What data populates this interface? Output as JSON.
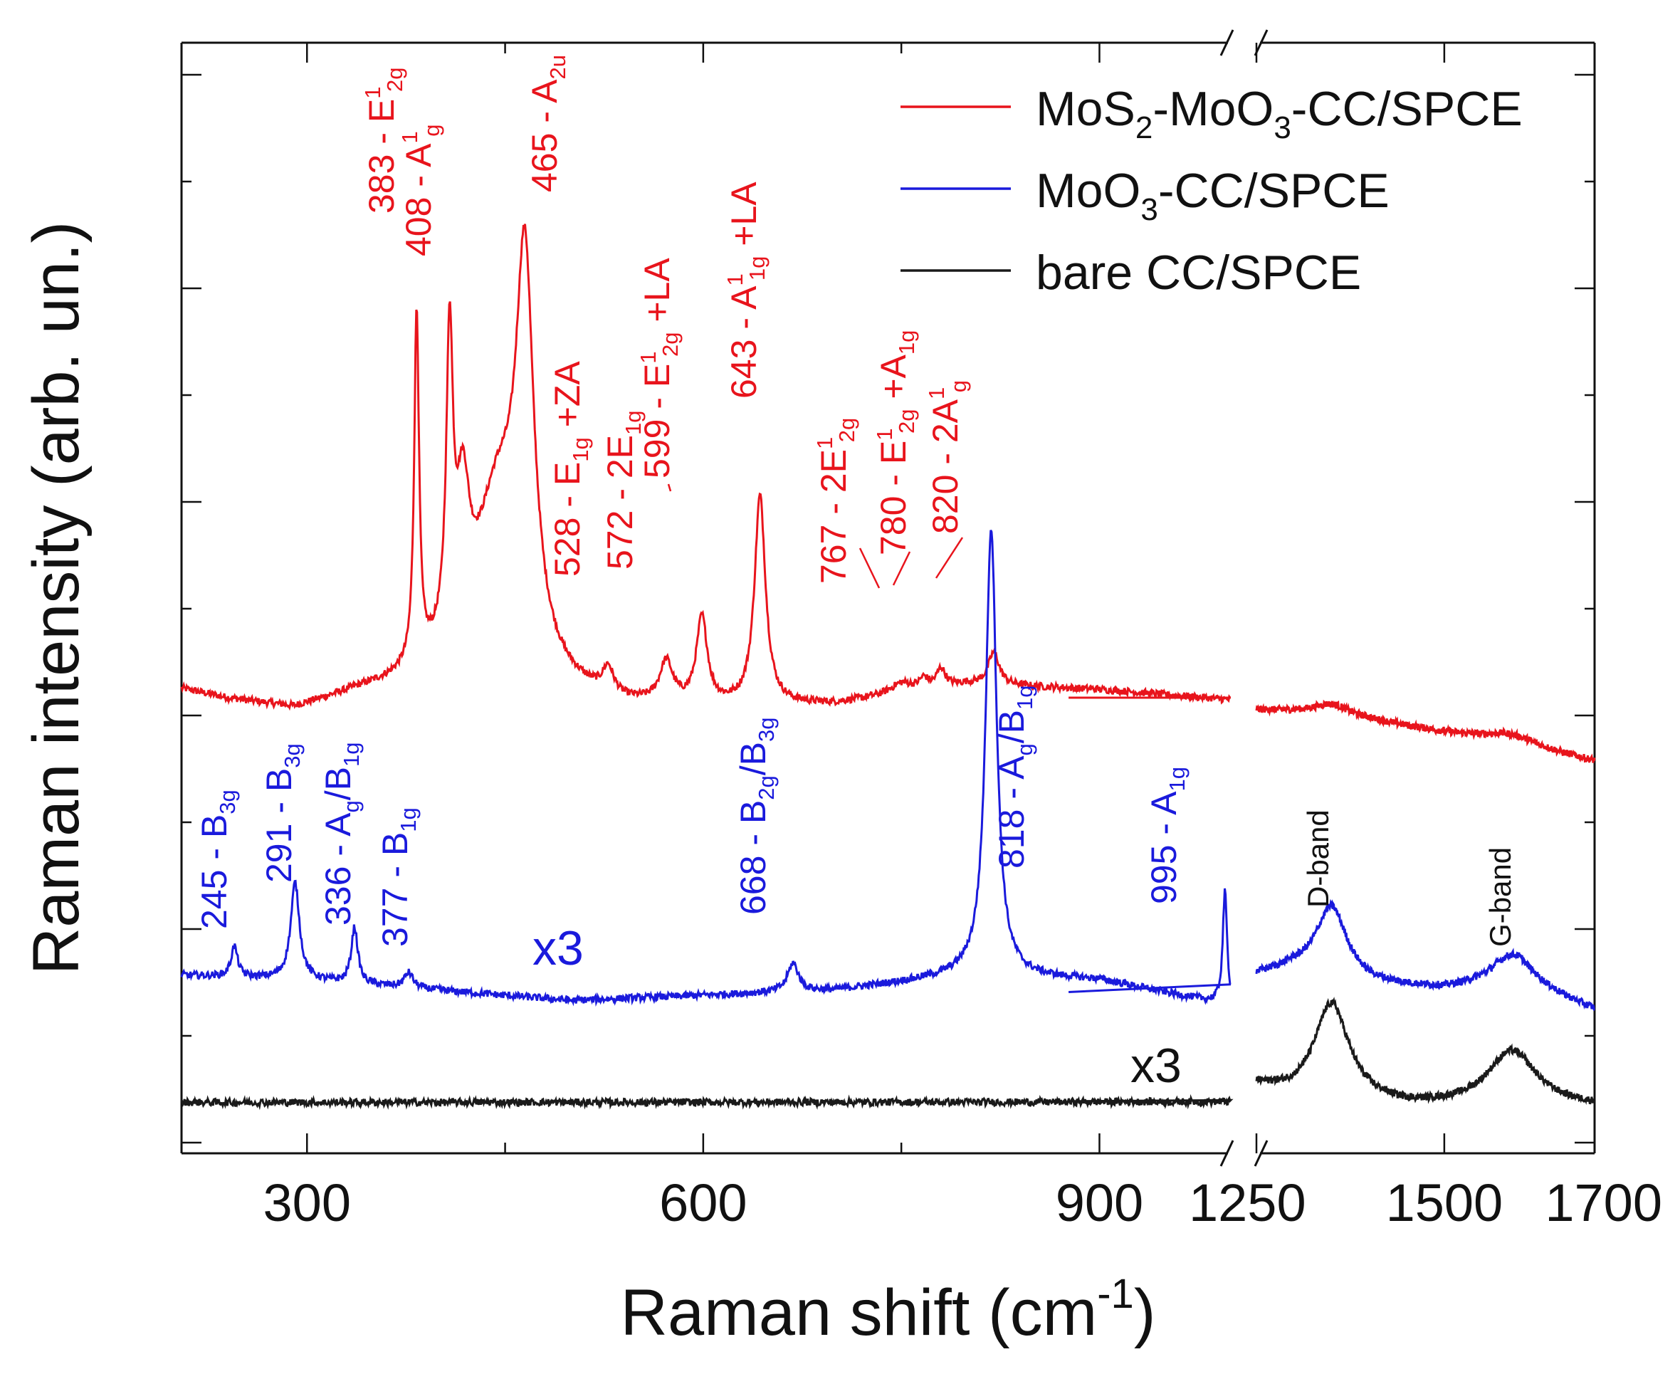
{
  "chart_data": {
    "type": "line",
    "xlabel": "Raman shift (cm",
    "xlabel_sup": "-1",
    "xlabel_close": ")",
    "ylabel": "Raman intensity (arb. un.)",
    "x_axis": {
      "broken": true,
      "left_range": [
        205,
        1000
      ],
      "right_range": [
        1250,
        1700
      ],
      "ticks_left": [
        {
          "value": 300,
          "label": "300"
        },
        {
          "value": 600,
          "label": "600"
        },
        {
          "value": 900,
          "label": "900"
        }
      ],
      "ticks_right": [
        {
          "value": 1250,
          "label": "1250"
        },
        {
          "value": 1500,
          "label": "1500"
        },
        {
          "value": 1700,
          "label": "1700"
        }
      ]
    },
    "y_axis": {
      "range": [
        0,
        10
      ],
      "ticks_shown": false
    },
    "legend": {
      "position": "top-right",
      "entries": [
        {
          "label": "MoS",
          "sub1": "2",
          "mid": "-MoO",
          "sub2": "3",
          "tail": "-CC/SPCE",
          "color": "#e8141c"
        },
        {
          "label": "MoO",
          "sub1": "3",
          "tail": "-CC/SPCE",
          "color": "#1a1adc"
        },
        {
          "label": "bare CC/SPCE",
          "color": "#1a1a1a"
        }
      ]
    },
    "series": [
      {
        "name": "MoS2-MoO3-CC/SPCE",
        "color": "#e8141c",
        "baseline": [
          [
            205,
            4.2
          ],
          [
            240,
            4.1
          ],
          [
            290,
            4.0
          ],
          [
            340,
            4.15
          ],
          [
            400,
            4.25
          ],
          [
            480,
            4.1
          ],
          [
            540,
            4.0
          ],
          [
            600,
            4.0
          ],
          [
            700,
            4.05
          ],
          [
            800,
            4.25
          ],
          [
            900,
            4.2
          ],
          [
            1000,
            4.1
          ],
          [
            1250,
            4.0
          ],
          [
            1300,
            3.98
          ],
          [
            1400,
            3.9
          ],
          [
            1500,
            3.78
          ],
          [
            1580,
            3.7
          ],
          [
            1700,
            3.5
          ]
        ],
        "peaks": [
          {
            "x": 383,
            "height": 3.45,
            "width": 2.2
          },
          {
            "x": 408,
            "height": 2.9,
            "width": 3
          },
          {
            "x": 418,
            "height": 1.3,
            "width": 6
          },
          {
            "x": 445,
            "height": 1.8,
            "width": 22
          },
          {
            "x": 465,
            "height": 3.6,
            "width": 8
          },
          {
            "x": 528,
            "height": 0.25,
            "width": 5
          },
          {
            "x": 572,
            "height": 0.4,
            "width": 6
          },
          {
            "x": 599,
            "height": 0.85,
            "width": 5
          },
          {
            "x": 643,
            "height": 2.05,
            "width": 5
          },
          {
            "x": 750,
            "height": 0.1,
            "width": 10
          },
          {
            "x": 767,
            "height": 0.1,
            "width": 4
          },
          {
            "x": 780,
            "height": 0.18,
            "width": 4
          },
          {
            "x": 820,
            "height": 0.32,
            "width": 5
          },
          {
            "x": 1350,
            "height": 0.12,
            "width": 30
          },
          {
            "x": 1590,
            "height": 0.08,
            "width": 40
          }
        ]
      },
      {
        "name": "MoO3-CC/SPCE",
        "color": "#1a1adc",
        "scale_label": "x3",
        "baseline": [
          [
            205,
            1.4
          ],
          [
            300,
            1.35
          ],
          [
            400,
            1.25
          ],
          [
            500,
            1.15
          ],
          [
            600,
            1.2
          ],
          [
            700,
            1.25
          ],
          [
            800,
            1.4
          ],
          [
            900,
            1.35
          ],
          [
            1000,
            1.1
          ],
          [
            1250,
            1.4
          ],
          [
            1300,
            1.45
          ],
          [
            1400,
            1.3
          ],
          [
            1500,
            1.25
          ],
          [
            1600,
            1.3
          ],
          [
            1700,
            1.05
          ]
        ],
        "peaks": [
          {
            "x": 245,
            "height": 0.3,
            "width": 3
          },
          {
            "x": 291,
            "height": 0.95,
            "width": 4
          },
          {
            "x": 336,
            "height": 0.55,
            "width": 3
          },
          {
            "x": 377,
            "height": 0.15,
            "width": 4
          },
          {
            "x": 668,
            "height": 0.28,
            "width": 5
          },
          {
            "x": 818,
            "height": 4.4,
            "width": 5
          },
          {
            "x": 995,
            "height": 1.1,
            "width": 2
          },
          {
            "x": 1350,
            "height": 0.7,
            "width": 25
          },
          {
            "x": 1590,
            "height": 0.3,
            "width": 35
          }
        ]
      },
      {
        "name": "bare CC/SPCE",
        "color": "#1a1a1a",
        "scale_label": "x3",
        "baseline": [
          [
            205,
            0.15
          ],
          [
            1000,
            0.15
          ],
          [
            1250,
            0.3
          ],
          [
            1300,
            0.2
          ],
          [
            1450,
            0.1
          ],
          [
            1700,
            0.1
          ]
        ],
        "peaks": [
          {
            "x": 1350,
            "height": 0.95,
            "width": 28
          },
          {
            "x": 1590,
            "height": 0.55,
            "width": 40
          }
        ]
      }
    ],
    "annotations": {
      "red": [
        {
          "text": "383 - E",
          "sup": "1",
          "sub": "2g",
          "tail": ""
        },
        {
          "text": "408 - A",
          "sup": "1",
          "sub": "g",
          "tail": ""
        },
        {
          "text": "465 - A",
          "sup": "",
          "sub": "2u",
          "tail": ""
        },
        {
          "text": "528 - E",
          "sup": "",
          "sub": "1g",
          "tail": " +ZA"
        },
        {
          "text": "572 - 2E",
          "sup": "",
          "sub": "1g",
          "tail": ""
        },
        {
          "text": "599 - E",
          "sup": "1",
          "sub": "2g",
          "tail": " +LA"
        },
        {
          "text": "643 - A",
          "sup": "1",
          "sub": "1g",
          "tail": " +LA"
        },
        {
          "text": "767 - 2E",
          "sup": "1",
          "sub": "2g",
          "tail": ""
        },
        {
          "text": "780 - E",
          "sup": "1",
          "sub": "2g",
          "tail": " +A",
          "sub2": "1g"
        },
        {
          "text": "820 - 2A",
          "sup": "1",
          "sub": "g",
          "tail": ""
        }
      ],
      "blue": [
        {
          "text": "245 - B",
          "sub": "3g",
          "tail": ""
        },
        {
          "text": "291 - B",
          "sub": "3g",
          "tail": ""
        },
        {
          "text": "336 - A",
          "sub": "g",
          "tail": "/B",
          "sub2": "1g"
        },
        {
          "text": "377 - B",
          "sub": "1g",
          "tail": ""
        },
        {
          "text": "668 - B",
          "sub": "2g",
          "tail": "/B",
          "sub2": "3g"
        },
        {
          "text": "818 - A",
          "sub": "g",
          "tail": "/B",
          "sub2": "1g"
        },
        {
          "text": "995 - A",
          "sub": "1g",
          "tail": ""
        }
      ],
      "black": [
        {
          "text": "D-band"
        },
        {
          "text": "G-band"
        }
      ]
    }
  }
}
